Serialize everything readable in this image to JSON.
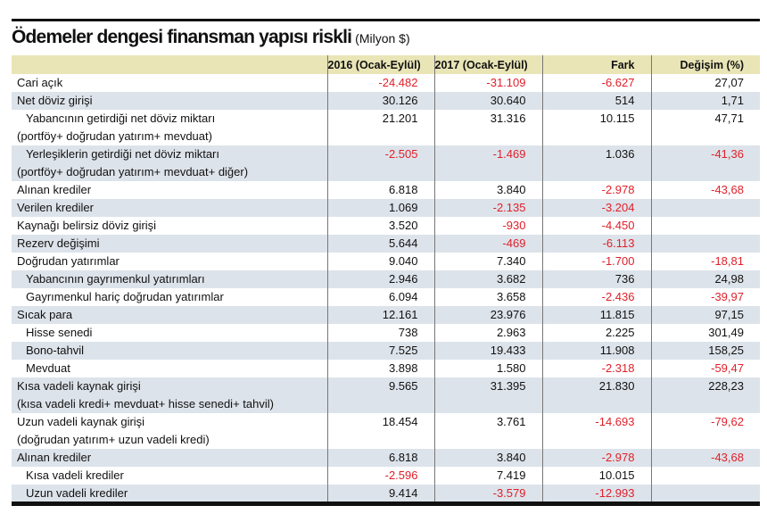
{
  "title": "Ödemeler dengesi finansman yapısı riskli",
  "unit": "(Milyon $)",
  "columns": [
    "",
    "2016 (Ocak-Eylül)",
    "2017 (Ocak-Eylül)",
    "Fark",
    "Değişim (%)"
  ],
  "colors": {
    "negative": "#e0202a",
    "header_bg": "#e9e5b6",
    "stripe_bg": "#dde3ea"
  },
  "rows": [
    {
      "label": "Cari açık",
      "indent": false,
      "values": [
        "-24.482",
        "-31.109",
        "-6.627",
        "27,07"
      ]
    },
    {
      "label": "Net döviz girişi",
      "indent": false,
      "values": [
        "30.126",
        "30.640",
        "514",
        "1,71"
      ]
    },
    {
      "label": "Yabancının getirdiği net döviz miktarı",
      "sublabel": "(portföy+ doğrudan yatırım+ mevduat)",
      "indent": true,
      "values": [
        "21.201",
        "31.316",
        "10.115",
        "47,71"
      ]
    },
    {
      "label": "Yerleşiklerin getirdiği net döviz miktarı",
      "sublabel": "(portföy+ doğrudan yatırım+ mevduat+ diğer)",
      "indent": true,
      "values": [
        "-2.505",
        "-1.469",
        "1.036",
        "-41,36"
      ]
    },
    {
      "label": "Alınan krediler",
      "indent": false,
      "values": [
        "6.818",
        "3.840",
        "-2.978",
        "-43,68"
      ]
    },
    {
      "label": "Verilen krediler",
      "indent": false,
      "values": [
        "1.069",
        "-2.135",
        "-3.204",
        ""
      ]
    },
    {
      "label": "Kaynağı belirsiz döviz girişi",
      "indent": false,
      "values": [
        "3.520",
        "-930",
        "-4.450",
        ""
      ]
    },
    {
      "label": "Rezerv değişimi",
      "indent": false,
      "values": [
        "5.644",
        "-469",
        "-6.113",
        ""
      ]
    },
    {
      "label": "Doğrudan yatırımlar",
      "indent": false,
      "values": [
        "9.040",
        "7.340",
        "-1.700",
        "-18,81"
      ]
    },
    {
      "label": "Yabancının gayrımenkul yatırımları",
      "indent": true,
      "values": [
        "2.946",
        "3.682",
        "736",
        "24,98"
      ]
    },
    {
      "label": "Gayrımenkul hariç doğrudan yatırımlar",
      "indent": true,
      "values": [
        "6.094",
        "3.658",
        "-2.436",
        "-39,97"
      ]
    },
    {
      "label": "Sıcak para",
      "indent": false,
      "values": [
        "12.161",
        "23.976",
        "11.815",
        "97,15"
      ]
    },
    {
      "label": "Hisse senedi",
      "indent": true,
      "values": [
        "738",
        "2.963",
        "2.225",
        "301,49"
      ]
    },
    {
      "label": "Bono-tahvil",
      "indent": true,
      "values": [
        "7.525",
        "19.433",
        "11.908",
        "158,25"
      ]
    },
    {
      "label": "Mevduat",
      "indent": true,
      "values": [
        "3.898",
        "1.580",
        "-2.318",
        "-59,47"
      ]
    },
    {
      "label": "Kısa vadeli kaynak girişi",
      "sublabel": "(kısa vadeli kredi+ mevduat+ hisse senedi+ tahvil)",
      "indent": false,
      "values": [
        "9.565",
        "31.395",
        "21.830",
        "228,23"
      ]
    },
    {
      "label": "Uzun vadeli kaynak girişi",
      "sublabel": "(doğrudan yatırım+ uzun vadeli kredi)",
      "indent": false,
      "values": [
        "18.454",
        "3.761",
        "-14.693",
        "-79,62"
      ]
    },
    {
      "label": "Alınan krediler",
      "indent": false,
      "values": [
        "6.818",
        "3.840",
        "-2.978",
        "-43,68"
      ]
    },
    {
      "label": "Kısa vadeli krediler",
      "indent": true,
      "values": [
        "-2.596",
        "7.419",
        "10.015",
        ""
      ]
    },
    {
      "label": "Uzun vadeli krediler",
      "indent": true,
      "values": [
        "9.414",
        "-3.579",
        "-12.993",
        ""
      ]
    }
  ]
}
